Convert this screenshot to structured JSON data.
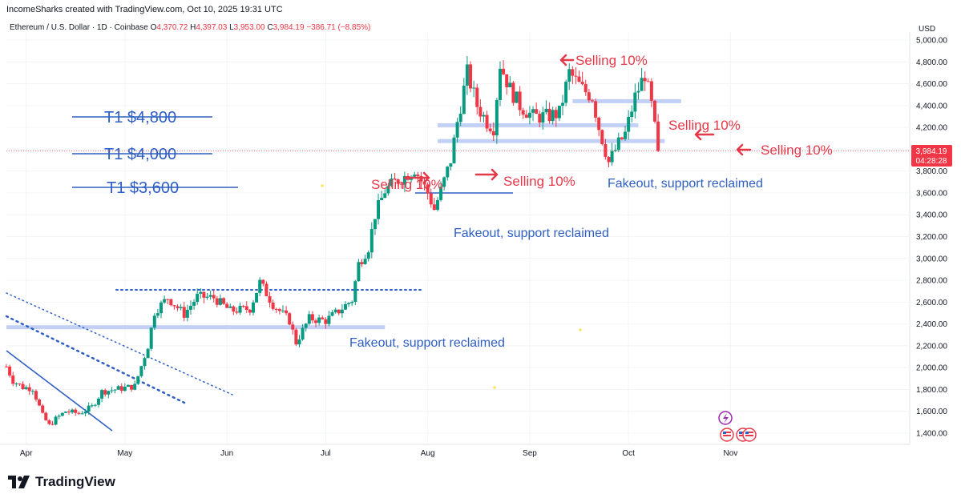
{
  "header": {
    "credit": "IncomeSharks created with TradingView.com, Oct 10, 2025 19:31 UTC"
  },
  "symbol_bar": {
    "name": "Ethereum / U.S. Dollar · 1D · Coinbase",
    "open_label": "O",
    "open": "4,370.72",
    "high_label": "H",
    "high": "4,397.03",
    "low_label": "L",
    "low": "3,953.00",
    "close_label": "C",
    "close": "3,984.19",
    "change": "−386.71 (−8.85%)"
  },
  "axis": {
    "currency": "USD",
    "price_badge": "3,984.19",
    "time_badge": "04:28:28"
  },
  "brand": {
    "name": "TradingView",
    "logo_icon": "tradingview-logo-icon"
  },
  "colors": {
    "up": "#089981",
    "down": "#f23645",
    "annotation_red": "#e5394a",
    "annotation_blue": "#2f5fc4",
    "support_band": "#b7c8f5"
  },
  "chart_data": {
    "type": "candlestick",
    "title": "",
    "ylim": [
      1320,
      5000
    ],
    "y_ticks": [
      1400,
      1600,
      1800,
      2000,
      2200,
      2400,
      2600,
      2800,
      3000,
      3200,
      3400,
      3600,
      3800,
      4000,
      4200,
      4400,
      4600,
      4800,
      5000
    ],
    "y_tick_labels": [
      "1,400.00",
      "1,600.00",
      "1,800.00",
      "2,000.00",
      "2,200.00",
      "2,400.00",
      "2,600.00",
      "2,800.00",
      "3,000.00",
      "3,200.00",
      "3,400.00",
      "3,600.00",
      "3,800.00",
      "4,000.00",
      "4,200.00",
      "4,400.00",
      "4,600.00",
      "4,800.00",
      "5,000.00"
    ],
    "x_ticks": [
      "Apr",
      "May",
      "Jun",
      "Jul",
      "Aug",
      "Sep",
      "Oct",
      "Nov"
    ],
    "date_start": "2025-03-26",
    "date_end": "2025-11-25",
    "x_tick_dates": [
      "2025-04-01",
      "2025-05-01",
      "2025-06-01",
      "2025-07-01",
      "2025-08-01",
      "2025-09-01",
      "2025-10-01",
      "2025-11-01"
    ],
    "close_series": [
      [
        "2025-03-26",
        2010
      ],
      [
        "2025-03-28",
        1880
      ],
      [
        "2025-03-31",
        1820
      ],
      [
        "2025-04-03",
        1810
      ],
      [
        "2025-04-06",
        1560
      ],
      [
        "2025-04-08",
        1470
      ],
      [
        "2025-04-10",
        1530
      ],
      [
        "2025-04-13",
        1600
      ],
      [
        "2025-04-17",
        1580
      ],
      [
        "2025-04-21",
        1640
      ],
      [
        "2025-04-24",
        1780
      ],
      [
        "2025-04-28",
        1800
      ],
      [
        "2025-05-04",
        1830
      ],
      [
        "2025-05-08",
        2200
      ],
      [
        "2025-05-10",
        2510
      ],
      [
        "2025-05-14",
        2640
      ],
      [
        "2025-05-19",
        2490
      ],
      [
        "2025-05-23",
        2650
      ],
      [
        "2025-05-28",
        2640
      ],
      [
        "2025-06-02",
        2520
      ],
      [
        "2025-06-08",
        2540
      ],
      [
        "2025-06-11",
        2780
      ],
      [
        "2025-06-15",
        2580
      ],
      [
        "2025-06-20",
        2430
      ],
      [
        "2025-06-22",
        2230
      ],
      [
        "2025-06-26",
        2450
      ],
      [
        "2025-07-01",
        2430
      ],
      [
        "2025-07-05",
        2520
      ],
      [
        "2025-07-09",
        2620
      ],
      [
        "2025-07-11",
        2950
      ],
      [
        "2025-07-14",
        3100
      ],
      [
        "2025-07-16",
        3400
      ],
      [
        "2025-07-19",
        3620
      ],
      [
        "2025-07-22",
        3700
      ],
      [
        "2025-07-25",
        3750
      ],
      [
        "2025-07-28",
        3820
      ],
      [
        "2025-08-01",
        3600
      ],
      [
        "2025-08-03",
        3450
      ],
      [
        "2025-08-05",
        3620
      ],
      [
        "2025-08-08",
        3900
      ],
      [
        "2025-08-10",
        4250
      ],
      [
        "2025-08-13",
        4700
      ],
      [
        "2025-08-16",
        4400
      ],
      [
        "2025-08-19",
        4250
      ],
      [
        "2025-08-21",
        4200
      ],
      [
        "2025-08-23",
        4780
      ],
      [
        "2025-08-26",
        4550
      ],
      [
        "2025-08-29",
        4400
      ],
      [
        "2025-09-02",
        4300
      ],
      [
        "2025-09-06",
        4300
      ],
      [
        "2025-09-10",
        4330
      ],
      [
        "2025-09-13",
        4700
      ],
      [
        "2025-09-17",
        4550
      ],
      [
        "2025-09-20",
        4480
      ],
      [
        "2025-09-22",
        4200
      ],
      [
        "2025-09-25",
        3880
      ],
      [
        "2025-09-28",
        4050
      ],
      [
        "2025-09-30",
        4140
      ],
      [
        "2025-10-03",
        4480
      ],
      [
        "2025-10-06",
        4690
      ],
      [
        "2025-10-08",
        4400
      ],
      [
        "2025-10-10",
        3984.19
      ]
    ],
    "price_lines": [
      {
        "price": 3984.19,
        "style": "dotted",
        "color": "#f23645"
      }
    ],
    "support_bands": [
      {
        "price": 2370,
        "date_from": "2025-03-26",
        "date_to": "2025-07-19"
      },
      {
        "price": 4220,
        "date_from": "2025-08-04",
        "date_to": "2025-10-04"
      },
      {
        "price": 4075,
        "date_from": "2025-08-04",
        "date_to": "2025-10-12"
      },
      {
        "price": 4440,
        "date_from": "2025-09-14",
        "date_to": "2025-10-17"
      }
    ],
    "annotations": {
      "targets": [
        "T1 $4,800",
        "T1 $4,000",
        "T1 $3,600"
      ],
      "selling": [
        "Selling 10%",
        "Selling 10%",
        "Selling 10%",
        "Selling 10%",
        "Selling 10%"
      ],
      "fakeouts": [
        "Fakeout, support reclaimed",
        "Fakeout, support reclaimed",
        "Fakeout, support reclaimed"
      ]
    }
  }
}
